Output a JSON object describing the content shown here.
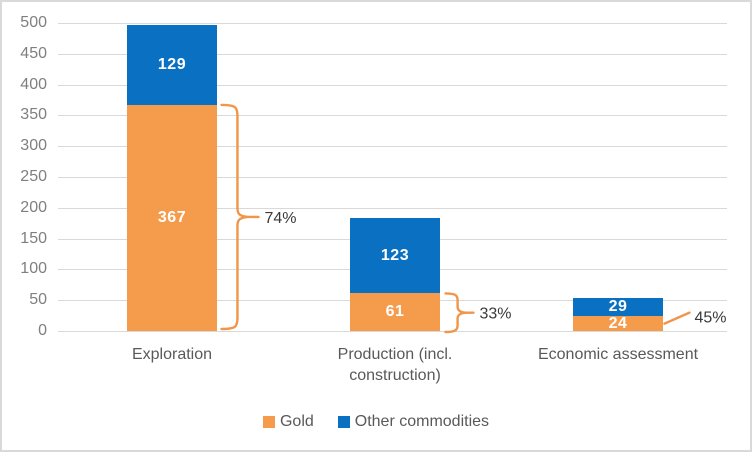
{
  "chart_data": {
    "type": "bar",
    "stacked": true,
    "categories": [
      "Exploration",
      "Production (incl. construction)",
      "Economic assessment"
    ],
    "series": [
      {
        "name": "Gold",
        "color": "#F59B4C",
        "values": [
          367,
          61,
          24
        ]
      },
      {
        "name": "Other commodities",
        "color": "#0A70C2",
        "values": [
          129,
          123,
          29
        ]
      }
    ],
    "annotations": [
      {
        "category_index": 0,
        "style": "brace",
        "series": "Gold",
        "value": 367,
        "label": "74%"
      },
      {
        "category_index": 1,
        "style": "brace",
        "series": "Gold",
        "value": 61,
        "label": "33%"
      },
      {
        "category_index": 2,
        "style": "leader",
        "series": "Gold",
        "value": 24,
        "label": "45%"
      }
    ],
    "ylim": [
      0,
      500
    ],
    "ytick_step": 50,
    "ytick_labels": [
      "0",
      "50",
      "100",
      "150",
      "200",
      "250",
      "300",
      "350",
      "400",
      "450",
      "500"
    ],
    "grid": true,
    "legend_position": "bottom"
  },
  "legend": {
    "items": [
      {
        "label": "Gold",
        "color": "#F59B4C"
      },
      {
        "label": "Other commodities",
        "color": "#0A70C2"
      }
    ]
  },
  "colors": {
    "gold": "#F59B4C",
    "other_commodities": "#0A70C2",
    "gridline": "#D9D9D9",
    "axis_tick_text": "#7F7F7F",
    "category_text": "#595959",
    "segment_label_text": "#FFFFFF",
    "annotation_text": "#3A3A3A",
    "annotation_shape": "#F0954A",
    "chart_border": "#D9D9D9",
    "background": "#FFFFFF"
  }
}
